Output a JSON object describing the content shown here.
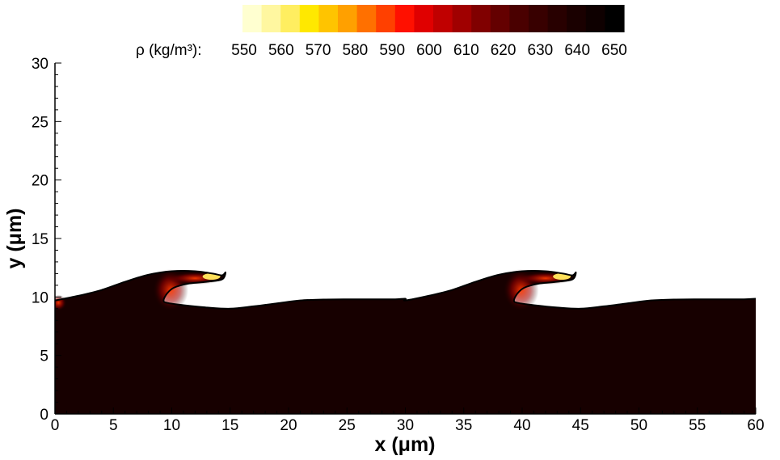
{
  "chart_data": {
    "type": "heatmap",
    "title": "",
    "xlabel": "x (μm)",
    "ylabel": "y (μm)",
    "xlim": [
      0,
      60
    ],
    "ylim": [
      0,
      30
    ],
    "xticks": [
      "0",
      "5",
      "10",
      "15",
      "20",
      "25",
      "30",
      "35",
      "40",
      "45",
      "50",
      "55",
      "60"
    ],
    "yticks": [
      "0",
      "5",
      "10",
      "15",
      "20",
      "25",
      "30"
    ],
    "grid": false,
    "colorbar": {
      "label": "ρ (kg/m³):",
      "placement": "top",
      "levels": [
        "550",
        "560",
        "570",
        "580",
        "590",
        "600",
        "610",
        "620",
        "630",
        "640",
        "650"
      ],
      "colors": [
        "#ffffd0",
        "#fff7a0",
        "#ffee60",
        "#ffe800",
        "#ffc400",
        "#ffa000",
        "#ff7000",
        "#ff4000",
        "#ff1000",
        "#e00000",
        "#c00000",
        "#a00000",
        "#800000",
        "#640000",
        "#4a0000",
        "#380000",
        "#280000",
        "#1a0000",
        "#0e0000",
        "#000000"
      ]
    },
    "interface_profile": {
      "liquid_density": 650,
      "gas_density": 550,
      "contour_color": "#000000",
      "liquid_color": "#170000",
      "gas_color": "#ffffff",
      "wave_period": 30,
      "crest_tip_color": "#ffe05a",
      "points": [
        [
          0.0,
          9.7
        ],
        [
          2.0,
          10.1
        ],
        [
          4.0,
          10.6
        ],
        [
          6.0,
          11.3
        ],
        [
          8.0,
          11.9
        ],
        [
          10.0,
          12.2
        ],
        [
          12.0,
          12.2
        ],
        [
          13.5,
          12.0
        ],
        [
          14.3,
          11.85
        ],
        [
          14.6,
          12.1
        ],
        [
          14.3,
          11.5
        ],
        [
          13.0,
          11.3
        ],
        [
          11.5,
          11.15
        ],
        [
          10.2,
          10.8
        ],
        [
          9.6,
          10.3
        ],
        [
          9.3,
          9.7
        ],
        [
          9.6,
          9.5
        ],
        [
          11.0,
          9.3
        ],
        [
          13.0,
          9.1
        ],
        [
          15.0,
          9.0
        ],
        [
          17.0,
          9.2
        ],
        [
          19.0,
          9.45
        ],
        [
          21.0,
          9.7
        ],
        [
          23.0,
          9.78
        ],
        [
          25.0,
          9.8
        ],
        [
          27.0,
          9.8
        ],
        [
          29.0,
          9.8
        ],
        [
          30.0,
          9.85
        ]
      ]
    }
  }
}
